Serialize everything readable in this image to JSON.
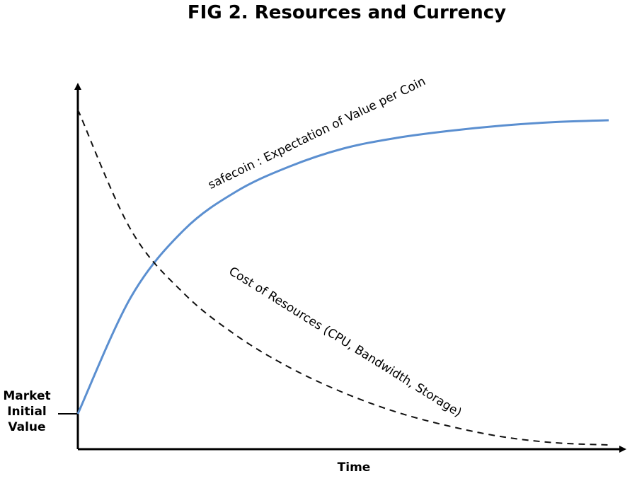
{
  "chart_data": {
    "type": "line",
    "title": "FIG 2. Resources and Currency",
    "xlabel": "Time",
    "ylabel": "",
    "y_marker": {
      "label_lines": [
        "Market",
        "Initial",
        "Value"
      ],
      "value": 0.1
    },
    "xlim": [
      0,
      1
    ],
    "ylim": [
      0,
      1
    ],
    "grid": false,
    "legend": "none",
    "axis_ticks": false,
    "series": [
      {
        "name": "safecoin : Expectation of Value per Coin",
        "style": "solid",
        "color": "#5b8fd0",
        "x": [
          0,
          0.1,
          0.2,
          0.3,
          0.4,
          0.5,
          0.6,
          0.7,
          0.8,
          0.9,
          1.0
        ],
        "y": [
          0.1,
          0.43,
          0.62,
          0.73,
          0.8,
          0.85,
          0.88,
          0.9,
          0.915,
          0.925,
          0.93
        ]
      },
      {
        "name": "Cost of Resources (CPU, Bandwidth, Storage)",
        "style": "dashed",
        "color": "#111111",
        "x": [
          0,
          0.1,
          0.2,
          0.3,
          0.4,
          0.5,
          0.6,
          0.7,
          0.8,
          0.9,
          1.0
        ],
        "y": [
          0.96,
          0.62,
          0.44,
          0.32,
          0.23,
          0.16,
          0.105,
          0.065,
          0.035,
          0.018,
          0.012
        ]
      }
    ]
  }
}
